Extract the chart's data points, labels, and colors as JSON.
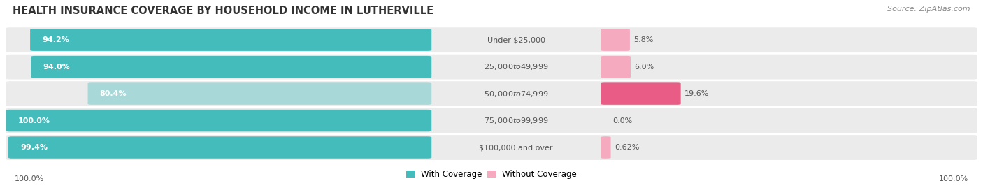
{
  "title": "HEALTH INSURANCE COVERAGE BY HOUSEHOLD INCOME IN LUTHERVILLE",
  "source": "Source: ZipAtlas.com",
  "categories": [
    "Under $25,000",
    "$25,000 to $49,999",
    "$50,000 to $74,999",
    "$75,000 to $99,999",
    "$100,000 and over"
  ],
  "with_coverage": [
    94.2,
    94.0,
    80.4,
    100.0,
    99.4
  ],
  "without_coverage": [
    5.8,
    6.0,
    19.6,
    0.0,
    0.62
  ],
  "color_with": [
    "#45BCBC",
    "#45BCBC",
    "#A8D8D8",
    "#45BCBC",
    "#45BCBC"
  ],
  "color_without": [
    "#F5AABF",
    "#F5AABF",
    "#E85C85",
    "#F5AABF",
    "#F5AABF"
  ],
  "bg_row_odd": "#EFEFEF",
  "bg_row_even": "#E8E8E8",
  "bg_fig": "#FFFFFF",
  "label_left_100": "100.0%",
  "label_right_100": "100.0%",
  "legend_with": "With Coverage",
  "legend_without": "Without Coverage",
  "color_legend_with": "#45BCBC",
  "color_legend_without": "#F5AABF"
}
